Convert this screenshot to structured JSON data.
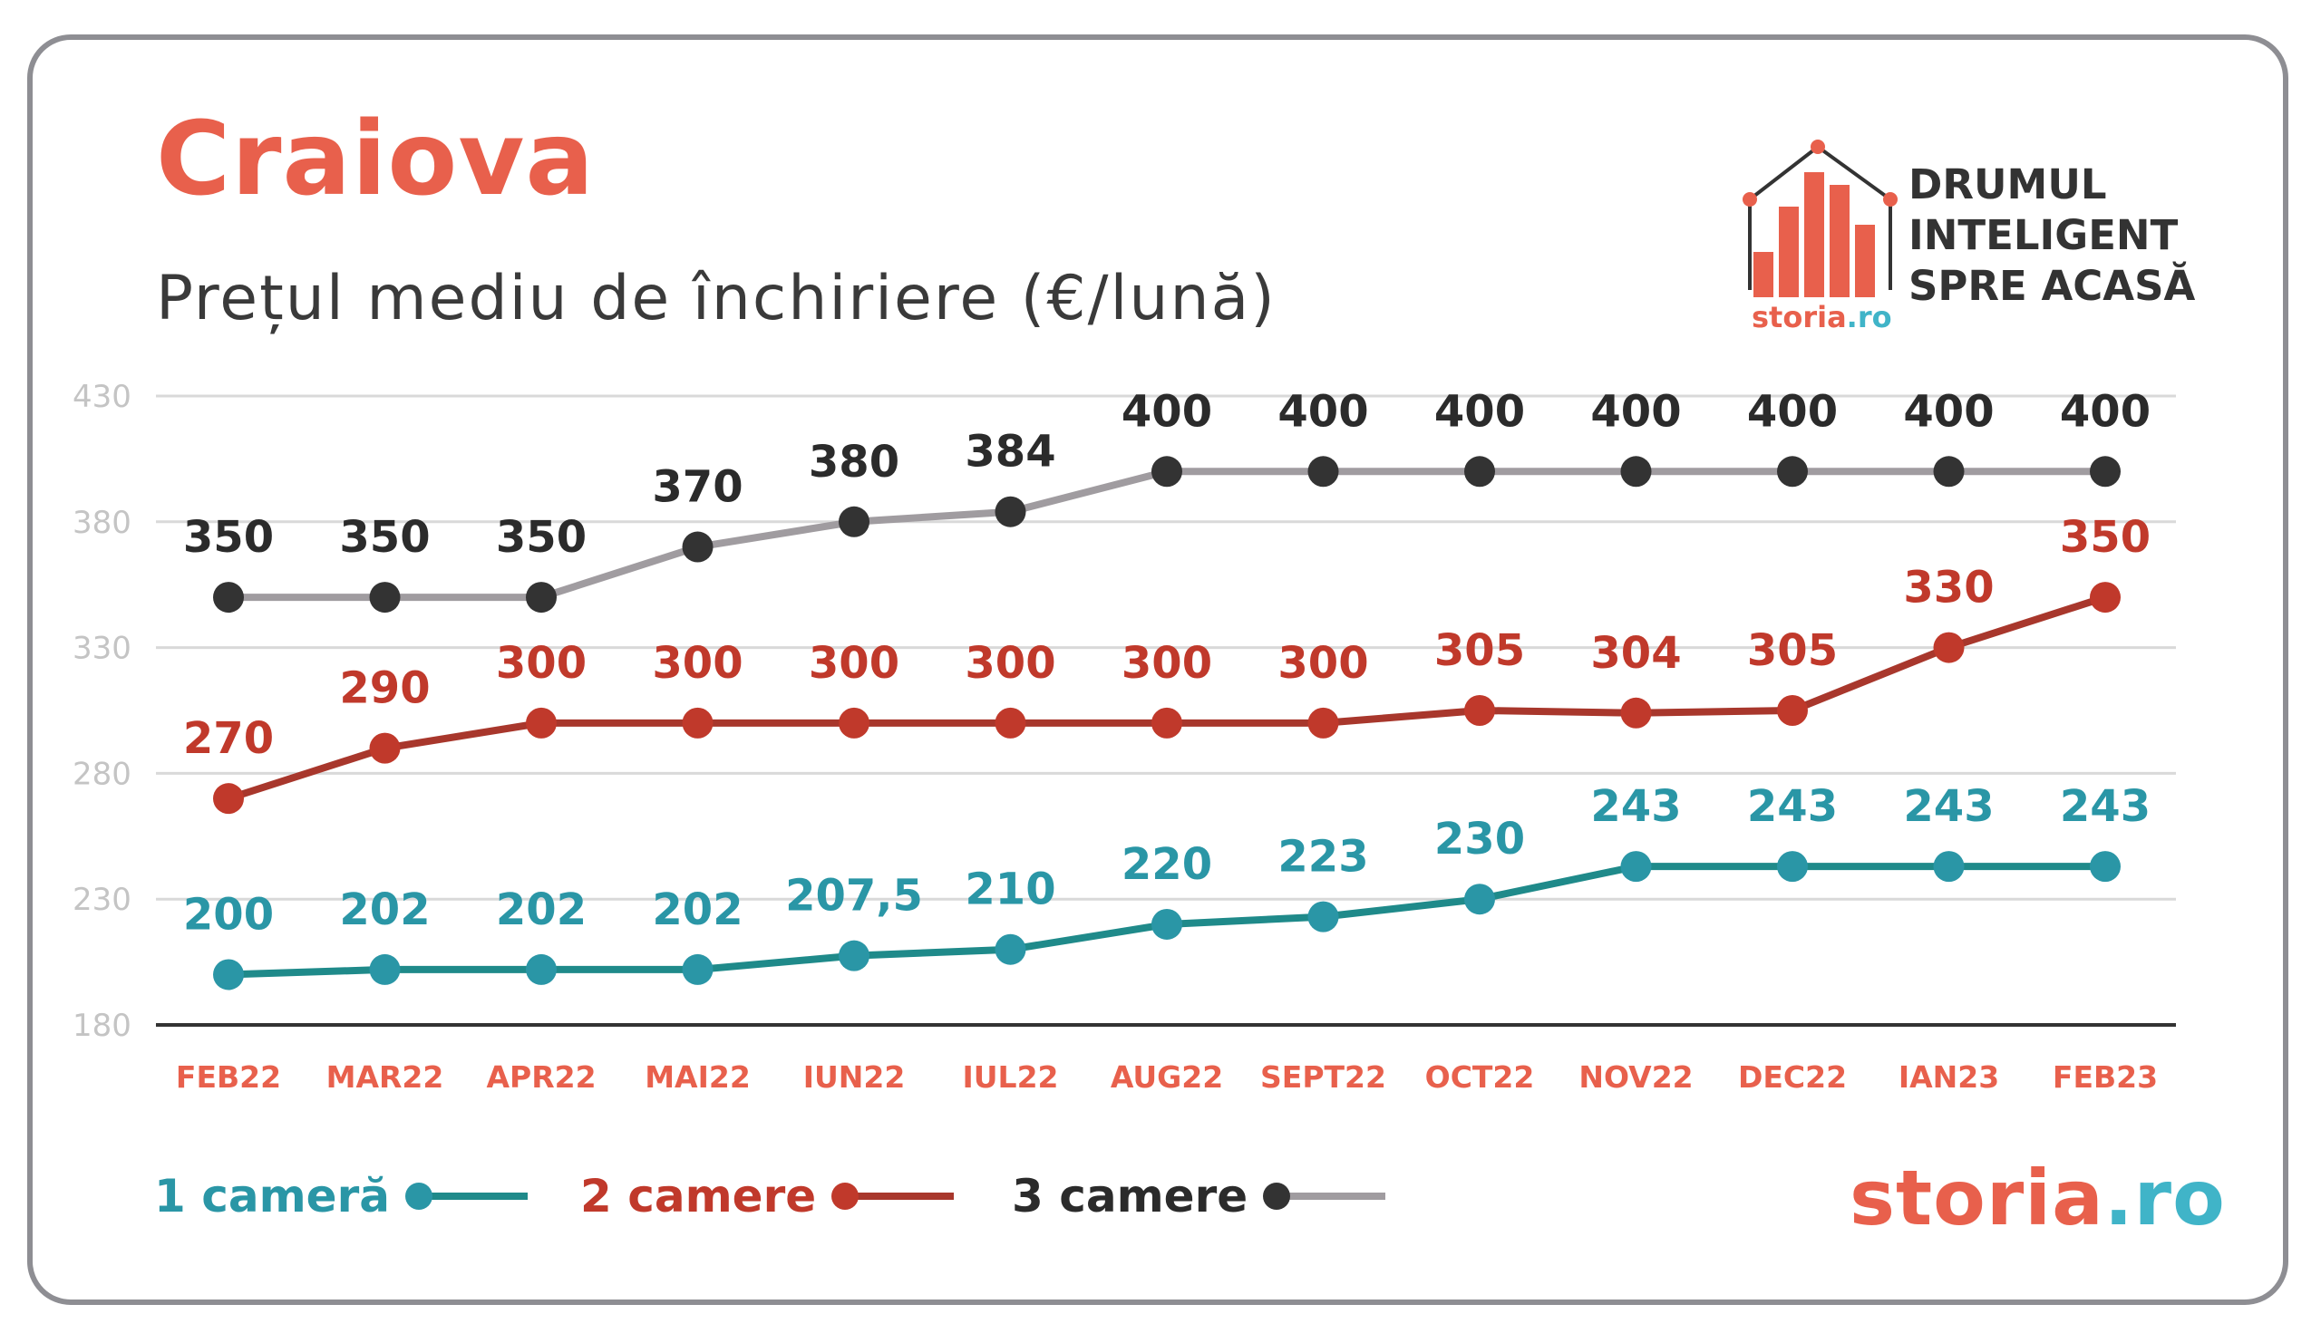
{
  "title": "Craiova",
  "subtitle": "Prețul mediu de închiriere (€/lună)",
  "branding": {
    "slogan": [
      "DRUMUL",
      "INTELIGENT",
      "SPRE ACASĂ"
    ],
    "brand_name": "storia",
    "brand_tld": ".ro",
    "logo_icon": "house-bar-chart-icon"
  },
  "colors": {
    "accent": "#e8604c",
    "teal": "#1f8a8a",
    "teal_label": "#2a96a6",
    "red": "#a8372c",
    "red_label": "#c0392b",
    "gray_line": "#a09ca0",
    "dark_point": "#333333",
    "brand_blue": "#40b4c8"
  },
  "chart_data": {
    "type": "line",
    "title": "Prețul mediu de închiriere (€/lună)",
    "xlabel": "",
    "ylabel": "",
    "ylim": [
      180,
      430
    ],
    "yticks": [
      430,
      380,
      330,
      280,
      230,
      180
    ],
    "grid": true,
    "legend_position": "bottom-left",
    "categories": [
      "FEB22",
      "MAR22",
      "APR22",
      "MAI22",
      "IUN22",
      "IUL22",
      "AUG22",
      "SEPT22",
      "OCT22",
      "NOV22",
      "DEC22",
      "IAN23",
      "FEB23"
    ],
    "series": [
      {
        "name": "1 cameră",
        "values": [
          200,
          202,
          202,
          202,
          207.5,
          210,
          220,
          223,
          230,
          243,
          243,
          243,
          243
        ],
        "labels": [
          "200",
          "202",
          "202",
          "202",
          "207,5",
          "210",
          "220",
          "223",
          "230",
          "243",
          "243",
          "243",
          "243"
        ],
        "line_color": "#1f8a8a",
        "point_color": "#2a96a6",
        "label_color": "#2a96a6"
      },
      {
        "name": "2 camere",
        "values": [
          270,
          290,
          300,
          300,
          300,
          300,
          300,
          300,
          305,
          304,
          305,
          330,
          350
        ],
        "labels": [
          "270",
          "290",
          "300",
          "300",
          "300",
          "300",
          "300",
          "300",
          "305",
          "304",
          "305",
          "330",
          "350"
        ],
        "line_color": "#a8372c",
        "point_color": "#c0392b",
        "label_color": "#c0392b"
      },
      {
        "name": "3 camere",
        "values": [
          350,
          350,
          350,
          370,
          380,
          384,
          400,
          400,
          400,
          400,
          400,
          400,
          400
        ],
        "labels": [
          "350",
          "350",
          "350",
          "370",
          "380",
          "384",
          "400",
          "400",
          "400",
          "400",
          "400",
          "400",
          "400"
        ],
        "line_color": "#a09ca0",
        "point_color": "#333333",
        "label_color": "#2b2b2b"
      }
    ]
  }
}
